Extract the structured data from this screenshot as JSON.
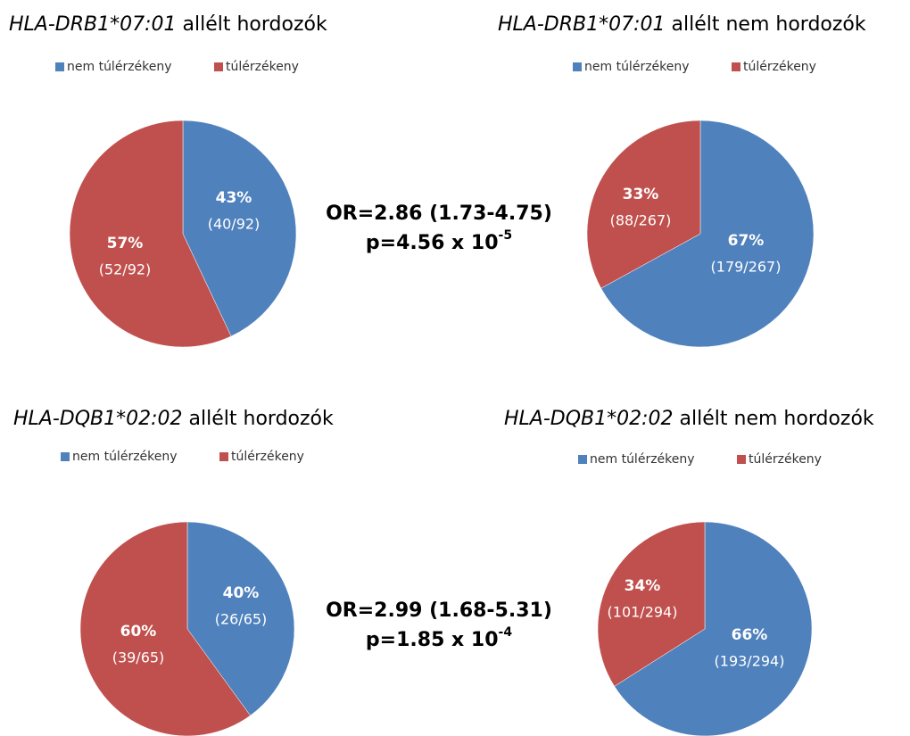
{
  "chart_data": [
    {
      "type": "pie",
      "title": [
        "HLA-DRB1*07:01",
        "allélt hordozók"
      ],
      "categories": [
        "nem túlérzékeny",
        "túlérzékeny"
      ],
      "values": [
        43,
        57
      ],
      "value_labels": [
        "43%",
        "57%"
      ],
      "detail_labels": [
        "(40/92)",
        "(52/92)"
      ],
      "colors": [
        "#4f81bd",
        "#c0504d"
      ]
    },
    {
      "type": "pie",
      "title": [
        "HLA-DRB1*07:01",
        "allélt nem hordozók"
      ],
      "categories": [
        "nem túlérzékeny",
        "túlérzékeny"
      ],
      "values": [
        67,
        33
      ],
      "value_labels": [
        "67%",
        "33%"
      ],
      "detail_labels": [
        "(179/267)",
        "(88/267)"
      ],
      "colors": [
        "#4f81bd",
        "#c0504d"
      ]
    },
    {
      "type": "pie",
      "title": [
        "HLA-DQB1*02:02",
        "allélt hordozók"
      ],
      "categories": [
        "nem túlérzékeny",
        "túlérzékeny"
      ],
      "values": [
        40,
        60
      ],
      "value_labels": [
        "40%",
        "60%"
      ],
      "detail_labels": [
        "(26/65)",
        "(39/65)"
      ],
      "colors": [
        "#4f81bd",
        "#c0504d"
      ]
    },
    {
      "type": "pie",
      "title": [
        "HLA-DQB1*02:02",
        "allélt nem hordozók"
      ],
      "categories": [
        "nem túlérzékeny",
        "túlérzékeny"
      ],
      "values": [
        66,
        34
      ],
      "value_labels": [
        "66%",
        "34%"
      ],
      "detail_labels": [
        "(193/294)",
        "(101/294)"
      ],
      "colors": [
        "#4f81bd",
        "#c0504d"
      ]
    }
  ],
  "annotations": [
    {
      "text": "OR=2.86 (1.73-4.75)",
      "p": [
        "p=4.56 x 10",
        "-5"
      ]
    },
    {
      "text": "OR=2.99 (1.68-5.31)",
      "p": [
        "p=1.85 x 10",
        "-4"
      ]
    }
  ]
}
